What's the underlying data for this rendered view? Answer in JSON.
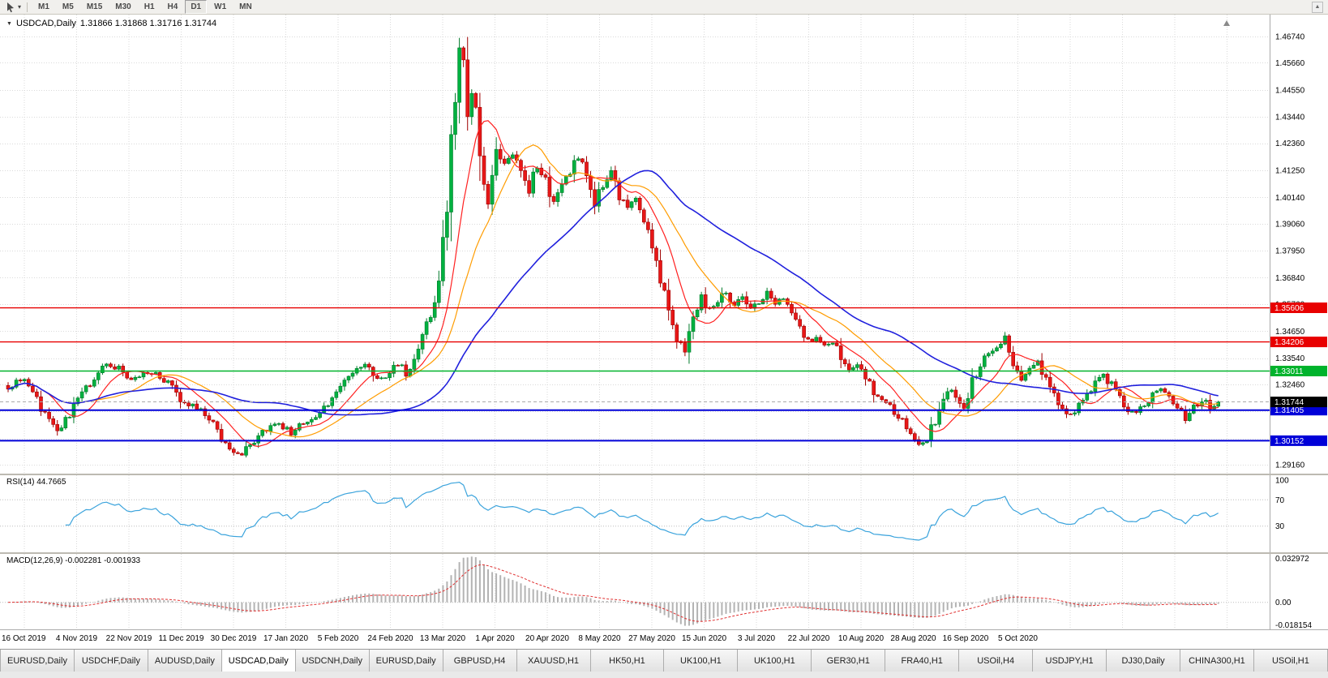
{
  "toolbar": {
    "timeframes": [
      "M1",
      "M5",
      "M15",
      "M30",
      "H1",
      "H4",
      "D1",
      "W1",
      "MN"
    ],
    "active_timeframe": "D1"
  },
  "chart": {
    "symbol_label": "USDCAD,Daily",
    "ohlc": "1.31866 1.31868 1.31716 1.31744",
    "collapse_icon": "▼",
    "price_axis": [
      "1.46740",
      "1.45660",
      "1.44550",
      "1.43440",
      "1.42360",
      "1.41250",
      "1.40140",
      "1.39060",
      "1.37950",
      "1.36840",
      "1.35760",
      "1.34650",
      "1.33540",
      "1.32460",
      "1.31350",
      "1.30240",
      "1.29160"
    ]
  },
  "rsi": {
    "label": "RSI(14) 44.7665",
    "axis_labels": [
      "100",
      "70",
      "30"
    ],
    "level_values": [
      100,
      70,
      30
    ],
    "guide_levels": [
      70,
      30
    ]
  },
  "macd": {
    "label": "MACD(12,26,9) -0.002281 -0.001933",
    "axis_labels": [
      "0.032972",
      "0.00",
      "-0.018154"
    ],
    "y_range": [
      -0.019,
      0.034
    ]
  },
  "dates": [
    "16 Oct 2019",
    "4 Nov 2019",
    "22 Nov 2019",
    "11 Dec 2019",
    "30 Dec 2019",
    "17 Jan 2020",
    "5 Feb 2020",
    "24 Feb 2020",
    "13 Mar 2020",
    "1 Apr 2020",
    "20 Apr 2020",
    "8 May 2020",
    "27 May 2020",
    "15 Jun 2020",
    "3 Jul 2020",
    "22 Jul 2020",
    "10 Aug 2020",
    "28 Aug 2020",
    "16 Sep 2020",
    "5 Oct 2020"
  ],
  "tabs": {
    "active_index": 3,
    "items": [
      "EURUSD,Daily",
      "USDCHF,Daily",
      "AUDUSD,Daily",
      "USDCAD,Daily",
      "USDCNH,Daily",
      "EURUSD,Daily",
      "GBPUSD,H4",
      "XAUUSD,H1",
      "HK50,H1",
      "UK100,H1",
      "UK100,H1",
      "GER30,H1",
      "FRA40,H1",
      "USOil,H4",
      "USDJPY,H1",
      "DJ30,Daily",
      "CHINA300,H1",
      "USOil,H1"
    ]
  },
  "colors": {
    "candle_up": "#00b140",
    "candle_up_border": "#007a2a",
    "candle_down": "#e81717",
    "candle_down_border": "#9e0000",
    "ma_fast": "#ff2020",
    "ma_mid": "#ff9c00",
    "ma_slow": "#2020dd",
    "rsi_line": "#3aa3dc",
    "macd_bar": "#b3b3b3",
    "macd_signal": "#e03030",
    "grid": "#dadada",
    "axis_text": "#000000",
    "level_red": "#e80000",
    "level_green": "#00b32c",
    "level_blue": "#0000d8",
    "current_price_badge": "#000000"
  },
  "chart_data": {
    "type": "candlestick",
    "symbol": "USDCAD",
    "timeframe": "Daily",
    "x_range": [
      "16 Oct 2019",
      "Oct 2020"
    ],
    "y_range": [
      1.288,
      1.4764
    ],
    "n_candles": 296,
    "last_close": 1.31744,
    "noise_seed": 20201016,
    "close_waypoints": [
      [
        0,
        1.323
      ],
      [
        3,
        1.3275
      ],
      [
        6,
        1.3205
      ],
      [
        9,
        1.312
      ],
      [
        12,
        1.3055
      ],
      [
        15,
        1.313
      ],
      [
        18,
        1.3205
      ],
      [
        21,
        1.328
      ],
      [
        24,
        1.333
      ],
      [
        27,
        1.331
      ],
      [
        30,
        1.326
      ],
      [
        33,
        1.329
      ],
      [
        36,
        1.33
      ],
      [
        39,
        1.325
      ],
      [
        42,
        1.319
      ],
      [
        45,
        1.316
      ],
      [
        48,
        1.313
      ],
      [
        51,
        1.305
      ],
      [
        54,
        1.2975
      ],
      [
        57,
        1.296
      ],
      [
        60,
        1.301
      ],
      [
        63,
        1.306
      ],
      [
        66,
        1.309
      ],
      [
        69,
        1.305
      ],
      [
        72,
        1.3085
      ],
      [
        75,
        1.312
      ],
      [
        78,
        1.317
      ],
      [
        81,
        1.323
      ],
      [
        84,
        1.329
      ],
      [
        87,
        1.332
      ],
      [
        90,
        1.327
      ],
      [
        93,
        1.329
      ],
      [
        95,
        1.334
      ],
      [
        97,
        1.329
      ],
      [
        99,
        1.336
      ],
      [
        101,
        1.343
      ],
      [
        103,
        1.353
      ],
      [
        105,
        1.37
      ],
      [
        107,
        1.4
      ],
      [
        108,
        1.425
      ],
      [
        109,
        1.448
      ],
      [
        110,
        1.462
      ],
      [
        111,
        1.454
      ],
      [
        112,
        1.43
      ],
      [
        113,
        1.45
      ],
      [
        114,
        1.442
      ],
      [
        115,
        1.425
      ],
      [
        116,
        1.41
      ],
      [
        117,
        1.401
      ],
      [
        118,
        1.412
      ],
      [
        119,
        1.423
      ],
      [
        121,
        1.415
      ],
      [
        123,
        1.42
      ],
      [
        125,
        1.412
      ],
      [
        127,
        1.405
      ],
      [
        129,
        1.414
      ],
      [
        131,
        1.409
      ],
      [
        133,
        1.399
      ],
      [
        135,
        1.406
      ],
      [
        137,
        1.413
      ],
      [
        139,
        1.418
      ],
      [
        141,
        1.409
      ],
      [
        143,
        1.4
      ],
      [
        145,
        1.407
      ],
      [
        147,
        1.413
      ],
      [
        149,
        1.403
      ],
      [
        151,
        1.396
      ],
      [
        153,
        1.401
      ],
      [
        155,
        1.393
      ],
      [
        157,
        1.382
      ],
      [
        159,
        1.369
      ],
      [
        161,
        1.355
      ],
      [
        163,
        1.344
      ],
      [
        165,
        1.338
      ],
      [
        167,
        1.35
      ],
      [
        169,
        1.36
      ],
      [
        171,
        1.355
      ],
      [
        173,
        1.359
      ],
      [
        175,
        1.363
      ],
      [
        177,
        1.357
      ],
      [
        179,
        1.36
      ],
      [
        181,
        1.356
      ],
      [
        183,
        1.359
      ],
      [
        185,
        1.363
      ],
      [
        187,
        1.357
      ],
      [
        189,
        1.36
      ],
      [
        191,
        1.354
      ],
      [
        193,
        1.347
      ],
      [
        195,
        1.342
      ],
      [
        197,
        1.345
      ],
      [
        199,
        1.339
      ],
      [
        201,
        1.342
      ],
      [
        203,
        1.336
      ],
      [
        205,
        1.331
      ],
      [
        207,
        1.334
      ],
      [
        209,
        1.328
      ],
      [
        211,
        1.322
      ],
      [
        213,
        1.318
      ],
      [
        215,
        1.315
      ],
      [
        217,
        1.311
      ],
      [
        219,
        1.307
      ],
      [
        221,
        1.302
      ],
      [
        223,
        1.2995
      ],
      [
        225,
        1.306
      ],
      [
        227,
        1.313
      ],
      [
        229,
        1.323
      ],
      [
        231,
        1.319
      ],
      [
        233,
        1.316
      ],
      [
        235,
        1.325
      ],
      [
        237,
        1.333
      ],
      [
        239,
        1.338
      ],
      [
        241,
        1.341
      ],
      [
        243,
        1.3435
      ],
      [
        245,
        1.333
      ],
      [
        247,
        1.328
      ],
      [
        249,
        1.331
      ],
      [
        251,
        1.334
      ],
      [
        253,
        1.327
      ],
      [
        255,
        1.32
      ],
      [
        257,
        1.314
      ],
      [
        259,
        1.311
      ],
      [
        261,
        1.316
      ],
      [
        263,
        1.321
      ],
      [
        265,
        1.325
      ],
      [
        267,
        1.329
      ],
      [
        269,
        1.324
      ],
      [
        271,
        1.319
      ],
      [
        273,
        1.315
      ],
      [
        275,
        1.312
      ],
      [
        277,
        1.316
      ],
      [
        279,
        1.32
      ],
      [
        281,
        1.323
      ],
      [
        283,
        1.319
      ],
      [
        285,
        1.315
      ],
      [
        287,
        1.311
      ],
      [
        289,
        1.315
      ],
      [
        291,
        1.319
      ],
      [
        293,
        1.316
      ],
      [
        295,
        1.3174
      ]
    ],
    "moving_averages": [
      {
        "name": "fast",
        "period": 10,
        "color_key": "ma_fast"
      },
      {
        "name": "mid",
        "period": 21,
        "color_key": "ma_mid"
      },
      {
        "name": "slow",
        "period": 50,
        "color_key": "ma_slow"
      }
    ],
    "horizontal_levels": [
      {
        "price": 1.35606,
        "label": "1.35606",
        "color_key": "level_red"
      },
      {
        "price": 1.34206,
        "label": "1.34206",
        "color_key": "level_red"
      },
      {
        "price": 1.33011,
        "label": "1.33011",
        "color_key": "level_green"
      },
      {
        "price": 1.31405,
        "label": "1.31405",
        "color_key": "level_blue"
      },
      {
        "price": 1.30152,
        "label": "1.30152",
        "color_key": "level_blue"
      }
    ],
    "current_price": {
      "value": 1.31744,
      "label": "1.31744"
    },
    "indicators": [
      {
        "name": "RSI",
        "period": 14,
        "current": 44.7665,
        "levels": [
          30,
          70
        ],
        "range": [
          0,
          100
        ]
      },
      {
        "name": "MACD",
        "fast": 12,
        "slow": 26,
        "signal": 9,
        "current_main": -0.002281,
        "current_signal": -0.001933,
        "axis_range": [
          -0.018154,
          0.032972
        ]
      }
    ]
  }
}
